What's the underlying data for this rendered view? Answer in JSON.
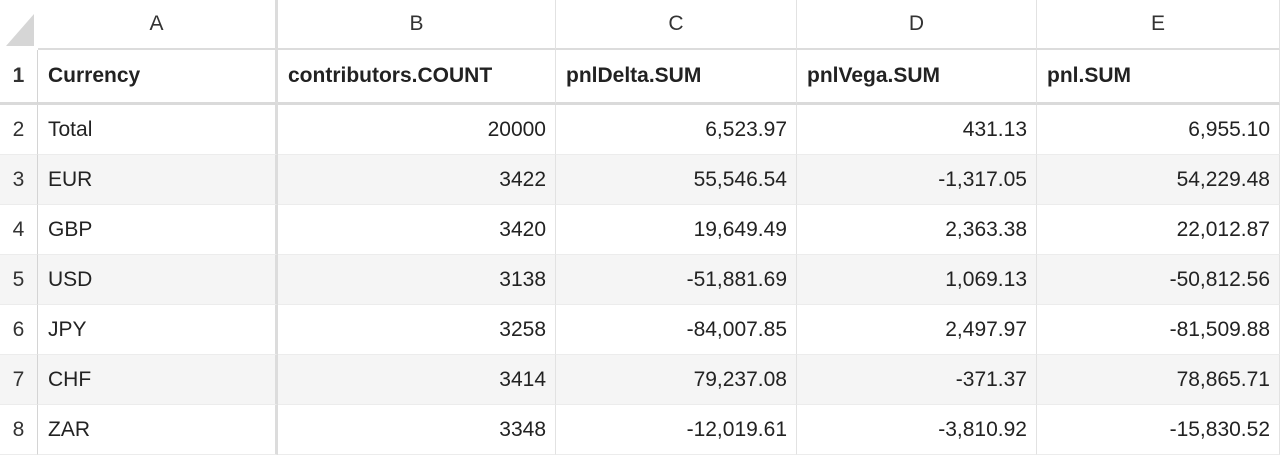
{
  "columns": [
    "A",
    "B",
    "C",
    "D",
    "E"
  ],
  "row_numbers": [
    "1",
    "2",
    "3",
    "4",
    "5",
    "6",
    "7",
    "8"
  ],
  "header": [
    "Currency",
    "contributors.COUNT",
    "pnlDelta.SUM",
    "pnlVega.SUM",
    "pnl.SUM"
  ],
  "rows": [
    [
      "Total",
      "20000",
      "6,523.97",
      "431.13",
      "6,955.10"
    ],
    [
      "EUR",
      "3422",
      "55,546.54",
      "-1,317.05",
      "54,229.48"
    ],
    [
      "GBP",
      "3420",
      "19,649.49",
      "2,363.38",
      "22,012.87"
    ],
    [
      "USD",
      "3138",
      "-51,881.69",
      "1,069.13",
      "-50,812.56"
    ],
    [
      "JPY",
      "3258",
      "-84,007.85",
      "2,497.97",
      "-81,509.88"
    ],
    [
      "CHF",
      "3414",
      "79,237.08",
      "-371.37",
      "78,865.71"
    ],
    [
      "ZAR",
      "3348",
      "-12,019.61",
      "-3,810.92",
      "-15,830.52"
    ]
  ]
}
